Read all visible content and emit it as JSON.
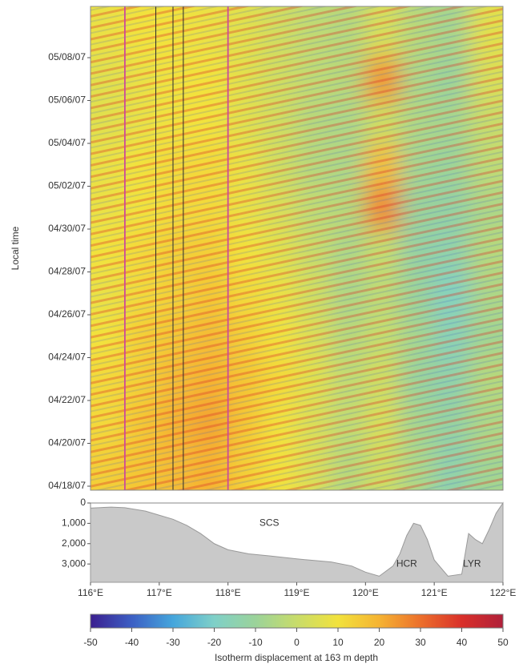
{
  "chart_data": [
    {
      "type": "heatmap",
      "ylabel": "Local time",
      "xlim": [
        116,
        122
      ],
      "ylim": [
        "04/18/07",
        "05/10/07"
      ],
      "yticks": [
        "04/18/07",
        "04/20/07",
        "04/22/07",
        "04/24/07",
        "04/26/07",
        "04/28/07",
        "04/30/07",
        "05/02/07",
        "05/04/07",
        "05/06/07",
        "05/08/07"
      ],
      "z": [
        [
          14,
          16,
          18,
          20,
          14,
          10,
          4,
          -4,
          2,
          -6,
          -14,
          -8
        ],
        [
          12,
          16,
          20,
          22,
          16,
          10,
          4,
          -2,
          4,
          -8,
          -12,
          -6
        ],
        [
          12,
          14,
          18,
          20,
          16,
          12,
          6,
          -2,
          2,
          -10,
          -14,
          -4
        ],
        [
          10,
          14,
          16,
          18,
          14,
          10,
          4,
          -4,
          0,
          -8,
          -16,
          -8
        ],
        [
          8,
          12,
          14,
          16,
          12,
          8,
          2,
          -6,
          -2,
          -10,
          -18,
          -6
        ],
        [
          10,
          12,
          14,
          14,
          10,
          6,
          0,
          -6,
          0,
          -12,
          -14,
          -4
        ],
        [
          8,
          10,
          12,
          12,
          8,
          4,
          -2,
          -4,
          26,
          -10,
          -12,
          -6
        ],
        [
          8,
          10,
          12,
          12,
          8,
          2,
          -4,
          -6,
          18,
          -8,
          -10,
          -2
        ],
        [
          6,
          8,
          10,
          10,
          6,
          2,
          -4,
          -6,
          2,
          -6,
          -8,
          0
        ],
        [
          6,
          8,
          10,
          10,
          6,
          2,
          -2,
          -4,
          24,
          -6,
          -10,
          4
        ],
        [
          8,
          10,
          10,
          8,
          6,
          2,
          -2,
          -4,
          4,
          -4,
          -8,
          6
        ]
      ],
      "clim": [
        -50,
        50
      ],
      "colormap": [
        "#3b1f8f",
        "#3c5fc4",
        "#45a6dc",
        "#7fd0c8",
        "#9bd39a",
        "#c8dc6a",
        "#f2e23c",
        "#f5b332",
        "#ec6f2b",
        "#d9302a",
        "#b0203a"
      ],
      "vlines": [
        {
          "x": 116.5,
          "color": "#cc4a9a"
        },
        {
          "x": 116.95,
          "color": "#2a2a2a"
        },
        {
          "x": 117.2,
          "color": "#2a2a2a"
        },
        {
          "x": 117.35,
          "color": "#2a2a2a"
        },
        {
          "x": 118.0,
          "color": "#cc4a9a"
        }
      ]
    },
    {
      "type": "area",
      "x": [
        116,
        116.3,
        116.5,
        116.8,
        117.0,
        117.2,
        117.4,
        117.6,
        117.8,
        118.0,
        118.3,
        118.6,
        119.0,
        119.5,
        119.8,
        120.0,
        120.2,
        120.4,
        120.5,
        120.6,
        120.7,
        120.8,
        120.9,
        121.0,
        121.2,
        121.4,
        121.5,
        121.6,
        121.7,
        121.8,
        121.9,
        122.0
      ],
      "values": [
        250,
        200,
        230,
        400,
        600,
        800,
        1100,
        1500,
        2000,
        2300,
        2500,
        2600,
        2750,
        2900,
        3100,
        3400,
        3600,
        3100,
        2500,
        1600,
        1000,
        1100,
        1800,
        2800,
        3600,
        3500,
        1500,
        1800,
        2000,
        1300,
        500,
        0
      ],
      "color": "#c9c9c9",
      "xlim": [
        116,
        122
      ],
      "ylim": [
        0,
        3900
      ],
      "yticks": [
        0,
        {
          "value": 1000,
          "label": "1,000"
        },
        {
          "value": 2000,
          "label": "2,000"
        },
        {
          "value": 3000,
          "label": "3,000"
        }
      ],
      "xticks": [
        {
          "value": 116,
          "label": "116°E"
        },
        {
          "value": 117,
          "label": "117°E"
        },
        {
          "value": 118,
          "label": "118°E"
        },
        {
          "value": 119,
          "label": "119°E"
        },
        {
          "value": 120,
          "label": "120°E"
        },
        {
          "value": 121,
          "label": "121°E"
        },
        {
          "value": 122,
          "label": "122°E"
        }
      ],
      "annotations": [
        {
          "text": "SCS",
          "x": 118.6,
          "y": 1000
        },
        {
          "text": "HCR",
          "x": 120.6,
          "y": 3000
        },
        {
          "text": "LYR",
          "x": 121.55,
          "y": 3000
        }
      ]
    },
    {
      "type": "colorbar",
      "xlabel": "Isotherm displacement at 163 m depth",
      "xlim": [
        -50,
        50
      ],
      "xticks": [
        -50,
        -40,
        -30,
        -20,
        -10,
        0,
        10,
        20,
        30,
        40,
        50
      ]
    }
  ]
}
